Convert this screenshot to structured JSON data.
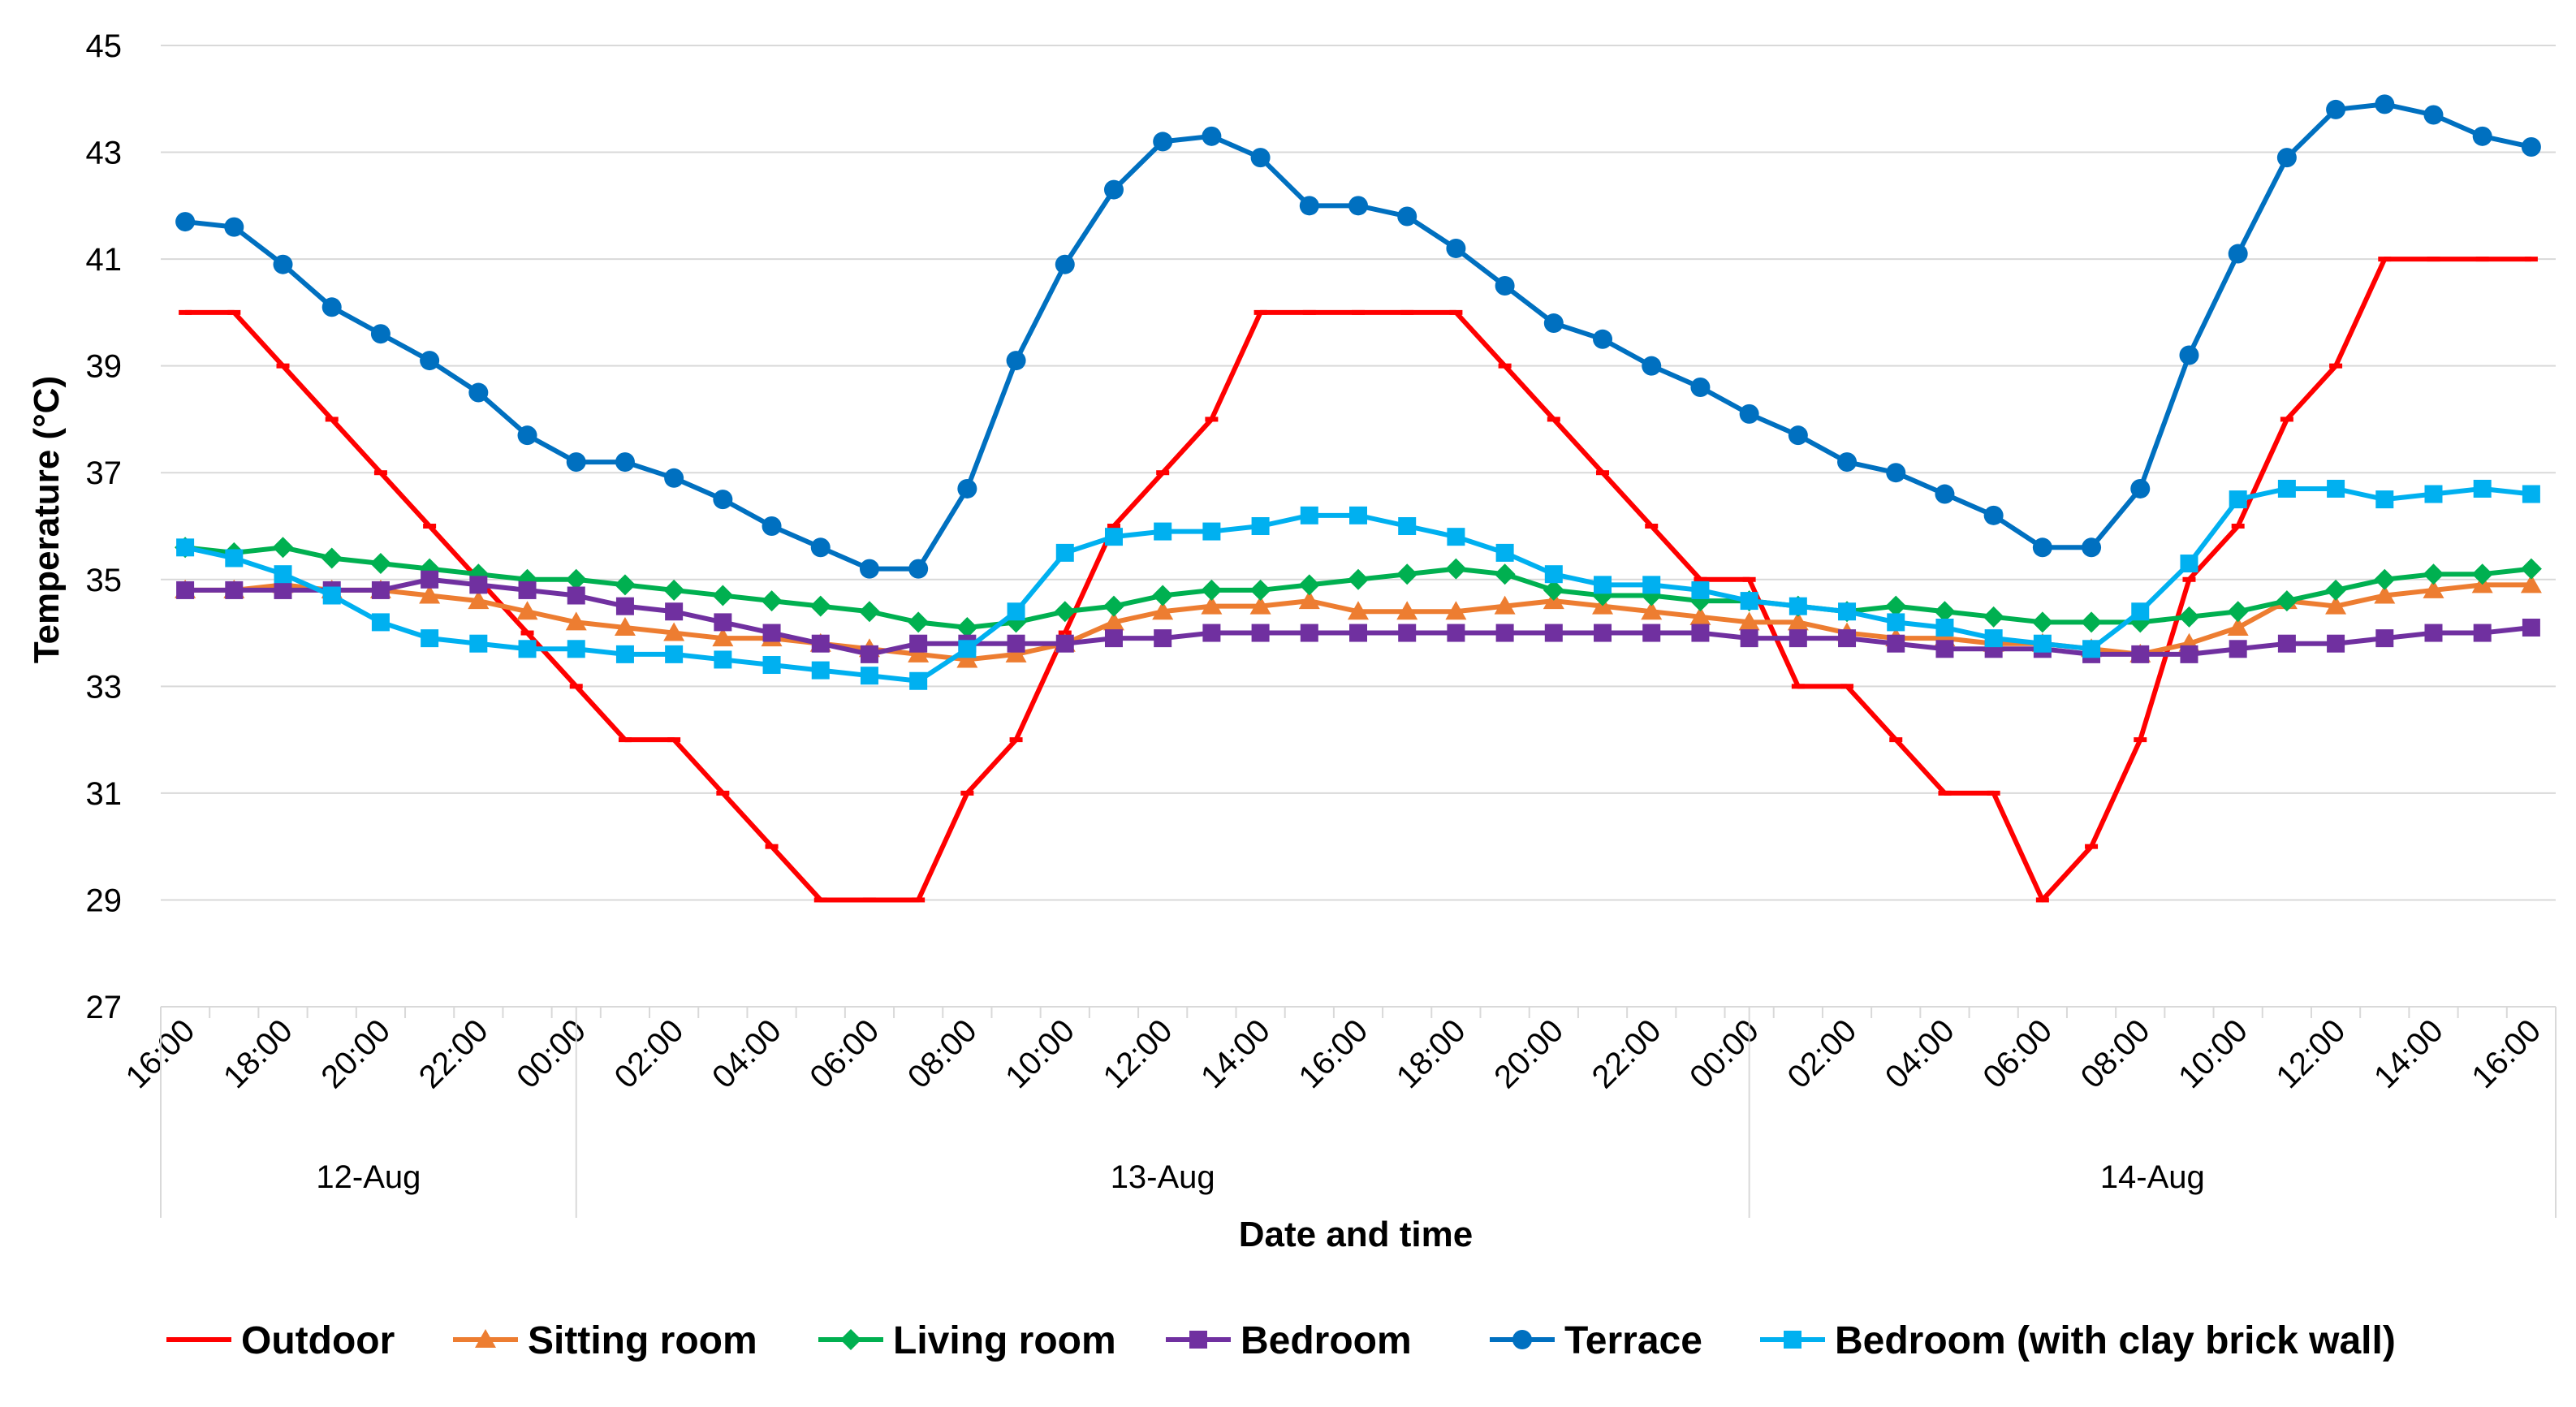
{
  "chart_data": {
    "type": "line",
    "title": "",
    "xlabel": "Date and time",
    "ylabel": "Temperature (°C)",
    "ylim": [
      27,
      45
    ],
    "yticks": [
      27,
      29,
      31,
      33,
      35,
      37,
      39,
      41,
      43,
      45
    ],
    "x_hours": [
      0,
      1,
      2,
      3,
      4,
      5,
      6,
      7,
      8,
      9,
      10,
      11,
      12,
      13,
      14,
      15,
      16,
      17,
      18,
      19,
      20,
      21,
      22,
      23,
      24,
      25,
      26,
      27,
      28,
      29,
      30,
      31,
      32,
      33,
      34,
      35,
      36,
      37,
      38,
      39,
      40,
      41,
      42,
      43,
      44,
      45,
      46,
      47,
      48
    ],
    "x_tick_labels": [
      "16:00",
      "18:00",
      "20:00",
      "22:00",
      "00:00",
      "02:00",
      "04:00",
      "06:00",
      "08:00",
      "10:00",
      "12:00",
      "14:00",
      "16:00",
      "18:00",
      "20:00",
      "22:00",
      "00:00",
      "02:00",
      "04:00",
      "06:00",
      "08:00",
      "10:00",
      "12:00",
      "14:00",
      "16:00"
    ],
    "date_groups": [
      {
        "label": "12-Aug",
        "start": 0,
        "end": 8
      },
      {
        "label": "13-Aug",
        "start": 8,
        "end": 32
      },
      {
        "label": "14-Aug",
        "start": 32,
        "end": 48
      }
    ],
    "grid": true,
    "legend_position": "bottom",
    "series": [
      {
        "name": "Outdoor",
        "color": "#ff0000",
        "marker": "dash",
        "values": [
          40,
          40,
          39,
          38,
          37,
          36,
          35,
          34,
          33,
          32,
          32,
          31,
          30,
          29,
          29,
          29,
          31,
          32,
          34,
          36,
          37,
          38,
          40,
          40,
          40,
          40,
          40,
          39,
          38,
          37,
          36,
          35,
          35,
          33,
          33,
          32,
          31,
          31,
          29,
          30,
          32,
          35,
          36,
          38,
          39,
          41,
          41,
          41,
          41
        ]
      },
      {
        "name": "Sitting room",
        "color": "#ed7d31",
        "marker": "triangle",
        "values": [
          34.8,
          34.8,
          34.9,
          34.8,
          34.8,
          34.7,
          34.6,
          34.4,
          34.2,
          34.1,
          34.0,
          33.9,
          33.9,
          33.8,
          33.7,
          33.6,
          33.5,
          33.6,
          33.8,
          34.2,
          34.4,
          34.5,
          34.5,
          34.6,
          34.4,
          34.4,
          34.4,
          34.5,
          34.6,
          34.5,
          34.4,
          34.3,
          34.2,
          34.2,
          34.0,
          33.9,
          33.9,
          33.8,
          33.8,
          33.7,
          33.6,
          33.8,
          34.1,
          34.6,
          34.5,
          34.7,
          34.8,
          34.9,
          34.9
        ]
      },
      {
        "name": "Living room",
        "color": "#00b050",
        "marker": "diamond",
        "values": [
          35.6,
          35.5,
          35.6,
          35.4,
          35.3,
          35.2,
          35.1,
          35.0,
          35.0,
          34.9,
          34.8,
          34.7,
          34.6,
          34.5,
          34.4,
          34.2,
          34.1,
          34.2,
          34.4,
          34.5,
          34.7,
          34.8,
          34.8,
          34.9,
          35.0,
          35.1,
          35.2,
          35.1,
          34.8,
          34.7,
          34.7,
          34.6,
          34.6,
          34.5,
          34.4,
          34.5,
          34.4,
          34.3,
          34.2,
          34.2,
          34.2,
          34.3,
          34.4,
          34.6,
          34.8,
          35.0,
          35.1,
          35.1,
          35.2
        ]
      },
      {
        "name": "Bedroom",
        "color": "#7030a0",
        "marker": "square",
        "values": [
          34.8,
          34.8,
          34.8,
          34.8,
          34.8,
          35.0,
          34.9,
          34.8,
          34.7,
          34.5,
          34.4,
          34.2,
          34.0,
          33.8,
          33.6,
          33.8,
          33.8,
          33.8,
          33.8,
          33.9,
          33.9,
          34.0,
          34.0,
          34.0,
          34.0,
          34.0,
          34.0,
          34.0,
          34.0,
          34.0,
          34.0,
          34.0,
          33.9,
          33.9,
          33.9,
          33.8,
          33.7,
          33.7,
          33.7,
          33.6,
          33.6,
          33.6,
          33.7,
          33.8,
          33.8,
          33.9,
          34.0,
          34.0,
          34.1
        ]
      },
      {
        "name": "Terrace",
        "color": "#0070c0",
        "marker": "circle",
        "values": [
          41.7,
          41.6,
          40.9,
          40.1,
          39.6,
          39.1,
          38.5,
          37.7,
          37.2,
          37.2,
          36.9,
          36.5,
          36.0,
          35.6,
          35.2,
          35.2,
          36.7,
          39.1,
          40.9,
          42.3,
          43.2,
          43.3,
          42.9,
          42.0,
          42.0,
          41.8,
          41.2,
          40.5,
          39.8,
          39.5,
          39.0,
          38.6,
          38.1,
          37.7,
          37.2,
          37.0,
          36.6,
          36.2,
          35.6,
          35.6,
          36.7,
          39.2,
          41.1,
          42.9,
          43.8,
          43.9,
          43.7,
          43.3,
          43.1
        ]
      },
      {
        "name": "Bedroom (with clay brick wall)",
        "color": "#00b0f0",
        "marker": "square",
        "values": [
          35.6,
          35.4,
          35.1,
          34.7,
          34.2,
          33.9,
          33.8,
          33.7,
          33.7,
          33.6,
          33.6,
          33.5,
          33.4,
          33.3,
          33.2,
          33.1,
          33.7,
          34.4,
          35.5,
          35.8,
          35.9,
          35.9,
          36.0,
          36.2,
          36.2,
          36.0,
          35.8,
          35.5,
          35.1,
          34.9,
          34.9,
          34.8,
          34.6,
          34.5,
          34.4,
          34.2,
          34.1,
          33.9,
          33.8,
          33.7,
          34.4,
          35.3,
          36.5,
          36.7,
          36.7,
          36.5,
          36.6,
          36.7,
          36.6
        ]
      }
    ]
  }
}
